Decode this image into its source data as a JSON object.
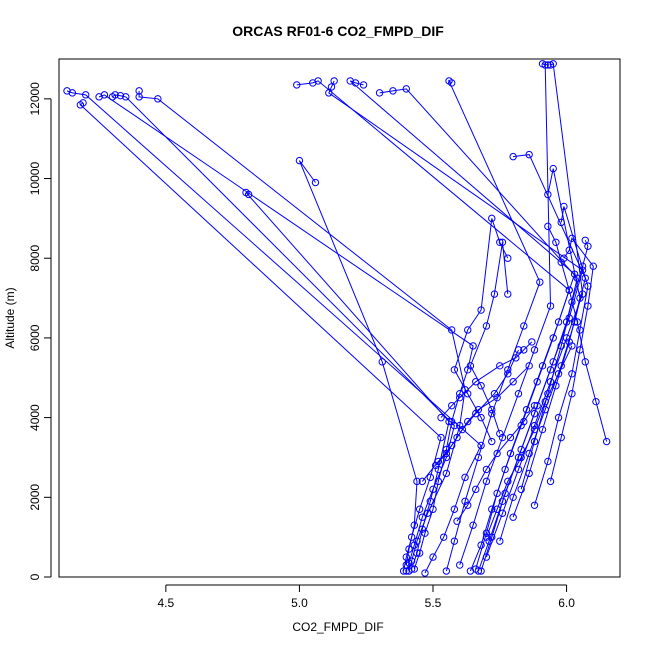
{
  "chart_data": {
    "type": "line",
    "title": "ORCAS RF01-6 CO2_FMPD_DIF",
    "xlabel": "CO2_FMPD_DIF",
    "ylabel": "Altitude (m)",
    "xlim": [
      4.1,
      6.2
    ],
    "ylim": [
      0,
      13000
    ],
    "x_ticks": [
      4.5,
      5.0,
      5.5,
      6.0
    ],
    "x_tick_labels": [
      "4.5",
      "5.0",
      "5.5",
      "6.0"
    ],
    "y_ticks": [
      0,
      2000,
      4000,
      6000,
      8000,
      10000,
      12000
    ],
    "y_tick_labels": [
      "0",
      "2000",
      "4000",
      "6000",
      "8000",
      "10000",
      "12000"
    ],
    "grid": false,
    "legend": "none",
    "series_color": "#0000ff",
    "series": [
      {
        "x": [
          5.41,
          5.42,
          5.44,
          5.48,
          5.55,
          5.6,
          5.62,
          5.57,
          4.47,
          4.4,
          4.4
        ],
        "y": [
          150,
          400,
          900,
          1600,
          2600,
          3800,
          4700,
          6200,
          12000,
          12050,
          12200
        ]
      },
      {
        "x": [
          5.43,
          5.45,
          5.47,
          5.5,
          5.52,
          5.55,
          5.57,
          5.6,
          5.63,
          5.65,
          4.27,
          4.25
        ],
        "y": [
          200,
          600,
          1100,
          1700,
          2400,
          3200,
          3900,
          4600,
          5200,
          5800,
          12100,
          12050
        ]
      },
      {
        "x": [
          5.47,
          5.5,
          5.54,
          5.58,
          5.62,
          5.68,
          4.2,
          4.15,
          4.13
        ],
        "y": [
          100,
          500,
          1000,
          1700,
          2500,
          3300,
          12100,
          12150,
          12200
        ]
      },
      {
        "x": [
          5.4,
          5.41,
          5.43,
          5.46,
          5.5,
          5.55,
          5.58,
          4.35,
          4.33,
          4.31,
          4.3
        ],
        "y": [
          150,
          350,
          800,
          1500,
          2200,
          3000,
          3800,
          12050,
          12080,
          12100,
          12050
        ]
      },
      {
        "x": [
          5.39,
          5.4,
          5.42,
          5.45,
          5.49,
          5.53,
          4.18,
          4.19
        ],
        "y": [
          150,
          500,
          1000,
          1700,
          2500,
          3500,
          11850,
          11900
        ]
      },
      {
        "x": [
          5.42,
          5.44,
          5.46,
          5.49,
          5.52,
          5.56,
          4.8,
          4.81
        ],
        "y": [
          200,
          600,
          1200,
          1900,
          2700,
          3900,
          9650,
          9600
        ]
      },
      {
        "x": [
          5.4,
          5.41,
          5.43,
          5.44,
          5.31,
          5.0,
          5.06
        ],
        "y": [
          300,
          700,
          1300,
          2400,
          5400,
          10450,
          9900
        ]
      },
      {
        "x": [
          5.67,
          5.71,
          5.76,
          5.82,
          5.88,
          5.94,
          6.0,
          6.04,
          5.4,
          5.35,
          5.3
        ],
        "y": [
          150,
          900,
          1900,
          3000,
          4100,
          5200,
          6400,
          7500,
          12250,
          12200,
          12150
        ]
      },
      {
        "x": [
          5.64,
          5.68,
          5.72,
          5.77,
          5.83,
          5.89,
          5.95,
          6.01,
          5.07,
          5.05,
          4.99
        ],
        "y": [
          150,
          800,
          1700,
          2700,
          3800,
          4900,
          6000,
          7200,
          12450,
          12400,
          12350
        ]
      },
      {
        "x": [
          5.68,
          5.72,
          5.77,
          5.83,
          5.89,
          5.95,
          6.01,
          6.06,
          5.11,
          5.12,
          5.13
        ],
        "y": [
          150,
          1000,
          2100,
          3200,
          4300,
          5400,
          6500,
          7700,
          12150,
          12300,
          12450
        ]
      },
      {
        "x": [
          5.66,
          5.7,
          5.74,
          5.79,
          5.85,
          5.91,
          5.97,
          6.03,
          5.19,
          5.21,
          5.24
        ],
        "y": [
          200,
          1100,
          2100,
          3100,
          4200,
          5300,
          6400,
          7600,
          12450,
          12400,
          12350
        ]
      },
      {
        "x": [
          5.55,
          5.58,
          5.62,
          5.67,
          5.72,
          5.78,
          5.84,
          5.9,
          5.56,
          5.57
        ],
        "y": [
          150,
          900,
          1900,
          3000,
          4100,
          5200,
          6300,
          7400,
          12450,
          12400
        ]
      },
      {
        "x": [
          5.6,
          5.65,
          5.7,
          5.76,
          5.82,
          5.88,
          5.94,
          5.92,
          5.91,
          5.93
        ],
        "y": [
          300,
          1300,
          2400,
          3500,
          4600,
          5700,
          6800,
          12850,
          12880,
          12850
        ]
      },
      {
        "x": [
          5.7,
          5.76,
          5.82,
          5.88,
          5.94,
          6.0,
          6.06,
          5.95,
          5.94
        ],
        "y": [
          500,
          1600,
          2700,
          3800,
          4900,
          6000,
          7100,
          12880,
          12850
        ]
      },
      {
        "x": [
          5.75,
          5.8,
          5.86,
          5.92,
          5.98,
          6.03,
          6.07,
          5.86,
          5.8
        ],
        "y": [
          900,
          2000,
          3100,
          4200,
          5300,
          6400,
          7500,
          10600,
          10550
        ]
      },
      {
        "x": [
          5.8,
          5.86,
          5.91,
          5.96,
          6.01,
          6.05,
          5.95,
          5.93
        ],
        "y": [
          1500,
          2600,
          3700,
          4800,
          5900,
          7000,
          10250,
          9600
        ]
      },
      {
        "x": [
          5.88,
          5.93,
          5.97,
          6.02,
          6.05,
          6.08,
          5.99,
          5.98
        ],
        "y": [
          1800,
          2900,
          4000,
          5100,
          6200,
          7300,
          9300,
          8900
        ]
      },
      {
        "x": [
          5.94,
          5.98,
          6.02,
          6.05,
          6.08,
          6.1,
          6.02,
          6.01,
          5.99
        ],
        "y": [
          2400,
          3500,
          4600,
          5700,
          6800,
          7800,
          8500,
          8200,
          8000
        ]
      },
      {
        "x": [
          6.15,
          6.11,
          6.07,
          6.04,
          6.01,
          5.98,
          5.96,
          5.93
        ],
        "y": [
          3400,
          4400,
          5400,
          6400,
          7200,
          7900,
          8400,
          8800
        ]
      },
      {
        "x": [
          5.83,
          5.88,
          5.93,
          5.98,
          6.02,
          6.06,
          6.08,
          6.07
        ],
        "y": [
          2200,
          3400,
          4600,
          5800,
          6900,
          7800,
          8300,
          8450
        ]
      },
      {
        "x": [
          5.75,
          5.72,
          5.68,
          5.64,
          5.7,
          5.73,
          5.76,
          5.78
        ],
        "y": [
          3600,
          4200,
          4800,
          5300,
          6300,
          7100,
          8400,
          7100
        ]
      },
      {
        "x": [
          5.72,
          5.68,
          5.63,
          5.58,
          5.63,
          5.68,
          5.72,
          5.75,
          5.78
        ],
        "y": [
          3400,
          4000,
          4600,
          5200,
          6200,
          6700,
          9000,
          8400,
          8000
        ]
      },
      {
        "x": [
          5.53,
          5.57,
          5.6,
          5.66,
          5.75,
          5.81,
          5.84,
          5.87
        ],
        "y": [
          4000,
          4300,
          4500,
          4900,
          5300,
          5500,
          5700,
          5900
        ]
      },
      {
        "x": [
          5.46,
          5.52,
          5.57,
          5.61,
          5.66,
          5.73,
          5.78,
          5.82
        ],
        "y": [
          2400,
          2900,
          3300,
          3700,
          4100,
          4600,
          5100,
          5700
        ]
      },
      {
        "x": [
          5.51,
          5.55,
          5.59,
          5.63,
          5.67,
          5.74,
          5.8,
          5.86
        ],
        "y": [
          2800,
          3100,
          3500,
          3900,
          4200,
          4500,
          4900,
          5300
        ]
      },
      {
        "x": [
          5.59,
          5.63,
          5.66,
          5.7,
          5.74,
          5.79,
          5.84,
          5.88
        ],
        "y": [
          1400,
          1800,
          2200,
          2700,
          3100,
          3500,
          3900,
          4300
        ]
      },
      {
        "x": [
          5.7,
          5.74,
          5.78,
          5.83,
          5.88,
          5.92,
          5.97,
          6.02
        ],
        "y": [
          1000,
          1700,
          2400,
          3000,
          3700,
          4400,
          5100,
          5800
        ]
      }
    ]
  }
}
